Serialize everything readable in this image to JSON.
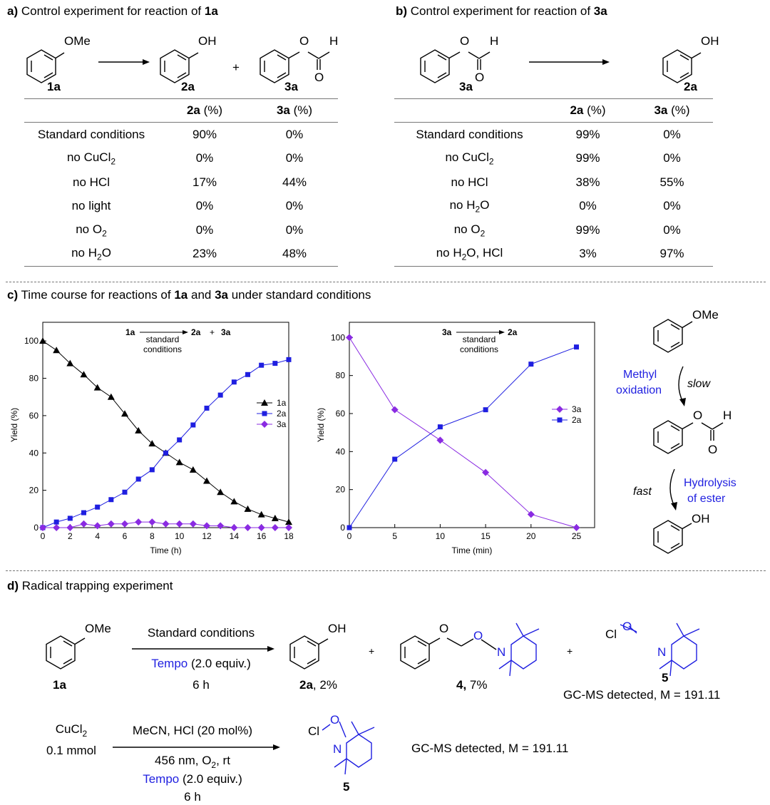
{
  "panel_a": {
    "tag": "a)",
    "title": "Control experiment for reaction of ",
    "title_bold": "1a",
    "scheme": {
      "reactant_label": "OMe",
      "reactant_id": "1a",
      "product1_label": "OH",
      "product1_id": "2a",
      "plus": "+",
      "product2_o": "O",
      "product2_h": "H",
      "product2_id": "3a"
    },
    "headers": [
      {
        "b": "",
        "t": ""
      },
      {
        "b": "2a",
        "t": " (%)"
      },
      {
        "b": "3a",
        "t": " (%)"
      }
    ],
    "rows": [
      {
        "cond": "Standard conditions",
        "v2a": "90%",
        "v3a": "0%"
      },
      {
        "cond": "no CuCl",
        "sub": "2",
        "v2a": "0%",
        "v3a": "0%"
      },
      {
        "cond": "no HCl",
        "v2a": "17%",
        "v3a": "44%"
      },
      {
        "cond": "no light",
        "v2a": "0%",
        "v3a": "0%"
      },
      {
        "cond": "no O",
        "sub": "2",
        "v2a": "0%",
        "v3a": "0%"
      },
      {
        "cond": "no H",
        "sub": "2",
        "tail": "O",
        "v2a": "23%",
        "v3a": "48%"
      }
    ]
  },
  "panel_b": {
    "tag": "b)",
    "title": "Control experiment for reaction of ",
    "title_bold": "3a",
    "scheme": {
      "reactant_o": "O",
      "reactant_h": "H",
      "reactant_id": "3a",
      "product_label": "OH",
      "product_id": "2a"
    },
    "headers": [
      {
        "b": "",
        "t": ""
      },
      {
        "b": "2a",
        "t": " (%)"
      },
      {
        "b": "3a",
        "t": " (%)"
      }
    ],
    "rows": [
      {
        "cond": "Standard conditions",
        "v2a": "99%",
        "v3a": "0%"
      },
      {
        "cond": "no CuCl",
        "sub": "2",
        "v2a": "99%",
        "v3a": "0%"
      },
      {
        "cond": "no HCl",
        "v2a": "38%",
        "v3a": "55%"
      },
      {
        "cond": "no H",
        "sub": "2",
        "tail": "O",
        "v2a": "0%",
        "v3a": "0%"
      },
      {
        "cond": "no O",
        "sub": "2",
        "v2a": "99%",
        "v3a": "0%"
      },
      {
        "cond": "no H",
        "sub": "2",
        "tail": "O, HCl",
        "v2a": "3%",
        "v3a": "97%"
      }
    ]
  },
  "panel_c": {
    "tag": "c)",
    "title_pre": "Time course for reactions of ",
    "title_b1": "1a",
    "title_mid": " and ",
    "title_b2": "3a",
    "title_post": " under standard conditions",
    "mechanism": {
      "start_label": "OMe",
      "step1_label": "Methyl\noxidation",
      "step1_rate": "slow",
      "mid_o": "O",
      "mid_h": "H",
      "step2_rate": "fast",
      "step2_label": "Hydrolysis\nof ester",
      "end_label": "OH"
    }
  },
  "chart_data": [
    {
      "type": "line",
      "header_eq": {
        "reactant": "1a",
        "products": "2a",
        "plus": "+",
        "product2": "3a",
        "condition": "standard\nconditions"
      },
      "xlabel": "Time (h)",
      "ylabel": "Yield (%)",
      "xlim": [
        0,
        18
      ],
      "ylim": [
        0,
        110
      ],
      "xticks": [
        0,
        2,
        4,
        6,
        8,
        10,
        12,
        14,
        16,
        18
      ],
      "yticks": [
        0,
        20,
        40,
        60,
        80,
        100
      ],
      "legend_position": "right",
      "series": [
        {
          "name": "1a",
          "color": "#000000",
          "marker": "triangle",
          "x": [
            0,
            1,
            2,
            3,
            4,
            5,
            6,
            7,
            8,
            9,
            10,
            11,
            12,
            13,
            14,
            15,
            16,
            17,
            18
          ],
          "y": [
            100,
            95,
            88,
            82,
            75,
            70,
            61,
            52,
            45,
            40,
            35,
            31,
            25,
            19,
            14,
            10,
            7,
            5,
            3
          ]
        },
        {
          "name": "2a",
          "color": "#1f1fe0",
          "marker": "square",
          "x": [
            0,
            1,
            2,
            3,
            4,
            5,
            6,
            7,
            8,
            9,
            10,
            11,
            12,
            13,
            14,
            15,
            16,
            17,
            18
          ],
          "y": [
            0,
            3,
            5,
            8,
            11,
            15,
            19,
            26,
            31,
            40,
            47,
            55,
            64,
            71,
            78,
            82,
            87,
            88,
            90
          ]
        },
        {
          "name": "3a",
          "color": "#8a2be2",
          "marker": "diamond",
          "x": [
            0,
            1,
            2,
            3,
            4,
            5,
            6,
            7,
            8,
            9,
            10,
            11,
            12,
            13,
            14,
            15,
            16,
            17,
            18
          ],
          "y": [
            0,
            0,
            0,
            2,
            1,
            2,
            2,
            3,
            3,
            2,
            2,
            2,
            1,
            1,
            0,
            0,
            0,
            0,
            0
          ]
        }
      ]
    },
    {
      "type": "line",
      "header_eq": {
        "reactant": "3a",
        "products": "2a",
        "condition": "standard\nconditions"
      },
      "xlabel": "Time (min)",
      "ylabel": "Yield (%)",
      "xlim": [
        0,
        27
      ],
      "ylim": [
        0,
        108
      ],
      "xticks": [
        0,
        5,
        10,
        15,
        20,
        25
      ],
      "yticks": [
        0,
        20,
        40,
        60,
        80,
        100
      ],
      "legend_position": "right",
      "series": [
        {
          "name": "3a",
          "color": "#8a2be2",
          "marker": "diamond",
          "x": [
            0,
            5,
            10,
            15,
            20,
            25
          ],
          "y": [
            100,
            62,
            46,
            29,
            7,
            0
          ]
        },
        {
          "name": "2a",
          "color": "#1f1fe0",
          "marker": "square",
          "x": [
            0,
            5,
            10,
            15,
            20,
            25
          ],
          "y": [
            0,
            36,
            53,
            62,
            86,
            95
          ]
        }
      ]
    }
  ],
  "panel_d": {
    "tag": "d)",
    "title": "Radical trapping experiment",
    "row1": {
      "reactant_label": "OMe",
      "reactant_id": "1a",
      "cond_top": "Standard conditions",
      "cond_tempo": "Tempo",
      "cond_tempo_tail": " (2.0 equiv.)",
      "cond_time": "6 h",
      "p1_label": "OH",
      "p1_id": "2a",
      "p1_yield": ", 2%",
      "plus": "+",
      "p2_o1": "O",
      "p2_o2": "O",
      "p2_n": "N",
      "p2_id": "4,",
      "p2_yield": " 7%",
      "p3_cl": "Cl",
      "p3_o": "O",
      "p3_n": "N",
      "p3_id": "5",
      "p3_note": "GC-MS detected, M = 191.11"
    },
    "row2": {
      "reagent": "CuCl",
      "reagent_sub": "2",
      "reagent_amount": "0.1 mmol",
      "cond_top": "MeCN, HCl (20 mol%)",
      "cond_2": "456 nm, O",
      "cond_2_sub": "2",
      "cond_2_tail": ", rt",
      "cond_tempo": "Tempo",
      "cond_tempo_tail": " (2.0 equiv.)",
      "cond_time": "6 h",
      "p_cl": "Cl",
      "p_o": "O",
      "p_n": "N",
      "p_id": "5",
      "p_note": "GC-MS detected, M = 191.11"
    }
  }
}
